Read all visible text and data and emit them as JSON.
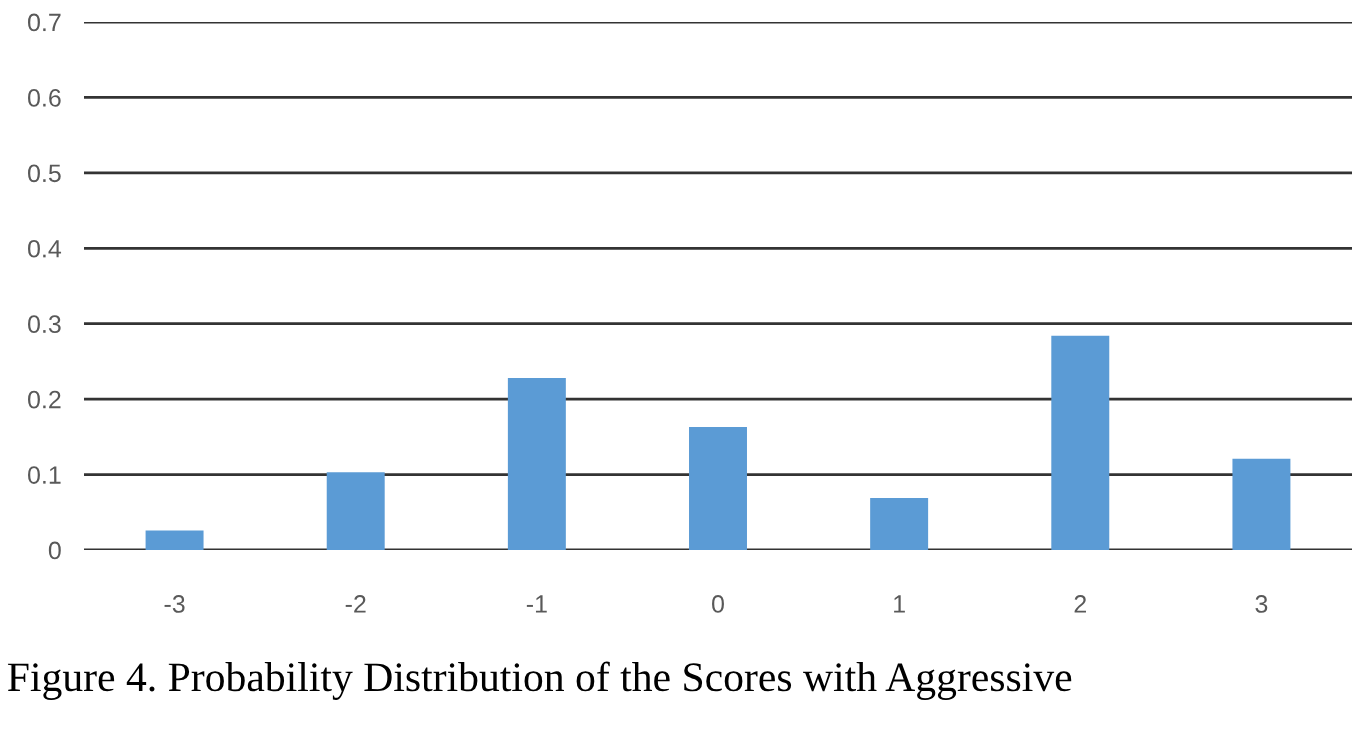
{
  "chart_data": {
    "type": "bar",
    "categories": [
      "-3",
      "-2",
      "-1",
      "0",
      "1",
      "2",
      "3"
    ],
    "values": [
      0.026,
      0.103,
      0.228,
      0.163,
      0.069,
      0.284,
      0.121
    ],
    "color": "#5b9bd5",
    "ylim": [
      0,
      0.7
    ],
    "yticks": [
      0,
      0.1,
      0.2,
      0.3,
      0.4,
      0.5,
      0.6,
      0.7
    ],
    "grid": "y",
    "annotations": [
      "Figure 4. Probability Distribution of the Scores with Aggressive"
    ]
  }
}
